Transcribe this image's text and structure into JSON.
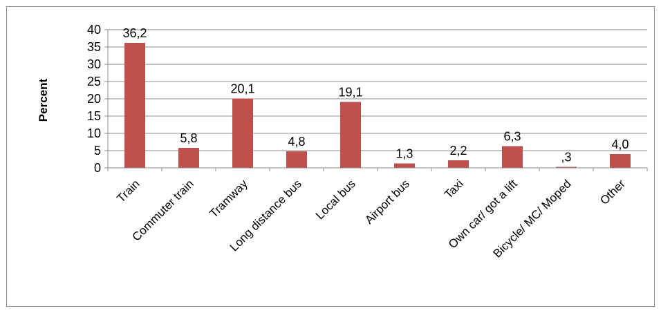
{
  "chart_data": {
    "type": "bar",
    "title": "",
    "xlabel": "",
    "ylabel": "Percent",
    "ylim": [
      0,
      40
    ],
    "yticks": [
      0,
      5,
      10,
      15,
      20,
      25,
      30,
      35,
      40
    ],
    "grid": true,
    "legend": "none",
    "bar_color": "#c0504d",
    "categories": [
      "Train",
      "Commuter train",
      "Tramway",
      "Long distance bus",
      "Local bus",
      "Airport bus",
      "Taxi",
      "Own car/ got a lift",
      "Bicycle/ MC/ Moped",
      "Other"
    ],
    "values": [
      36.2,
      5.8,
      20.1,
      4.8,
      19.1,
      1.3,
      2.2,
      6.3,
      0.3,
      4.0
    ],
    "data_labels": [
      "36,2",
      "5,8",
      "20,1",
      "4,8",
      "19,1",
      "1,3",
      "2,2",
      "6,3",
      ",3",
      "4,0"
    ]
  }
}
